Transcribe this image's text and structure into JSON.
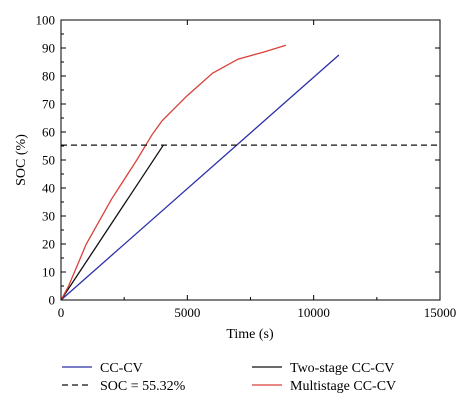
{
  "chart_data": {
    "type": "line",
    "xlabel": "Time (s)",
    "ylabel": "SOC (%)",
    "xlim": [
      0,
      15000
    ],
    "ylim": [
      0,
      100
    ],
    "xticks": [
      0,
      5000,
      10000,
      15000
    ],
    "yticks": [
      0,
      10,
      20,
      30,
      40,
      50,
      60,
      70,
      80,
      90,
      100
    ],
    "grid": false,
    "legend_position": "bottom",
    "series": [
      {
        "name": "CC-CV",
        "color": "#2b2fa8",
        "dash": "solid",
        "x": [
          0,
          11000
        ],
        "y": [
          0,
          87.5
        ]
      },
      {
        "name": "Two-stage CC-CV",
        "color": "#111111",
        "dash": "solid",
        "x": [
          0,
          4050
        ],
        "y": [
          0,
          55.3
        ]
      },
      {
        "name": "Multistage CC-CV",
        "color": "#d9403a",
        "dash": "solid",
        "x": [
          0,
          300,
          1000,
          2000,
          3000,
          3600,
          4000,
          5000,
          6000,
          7000,
          8000,
          8900
        ],
        "y": [
          0,
          5,
          20,
          36,
          50,
          59,
          64,
          73,
          81,
          86,
          88.5,
          91
        ]
      },
      {
        "name": "SOC = 55.32%",
        "color": "#111111",
        "dash": "dashed",
        "x": [
          0,
          15000
        ],
        "y": [
          55.32,
          55.32
        ]
      }
    ]
  }
}
